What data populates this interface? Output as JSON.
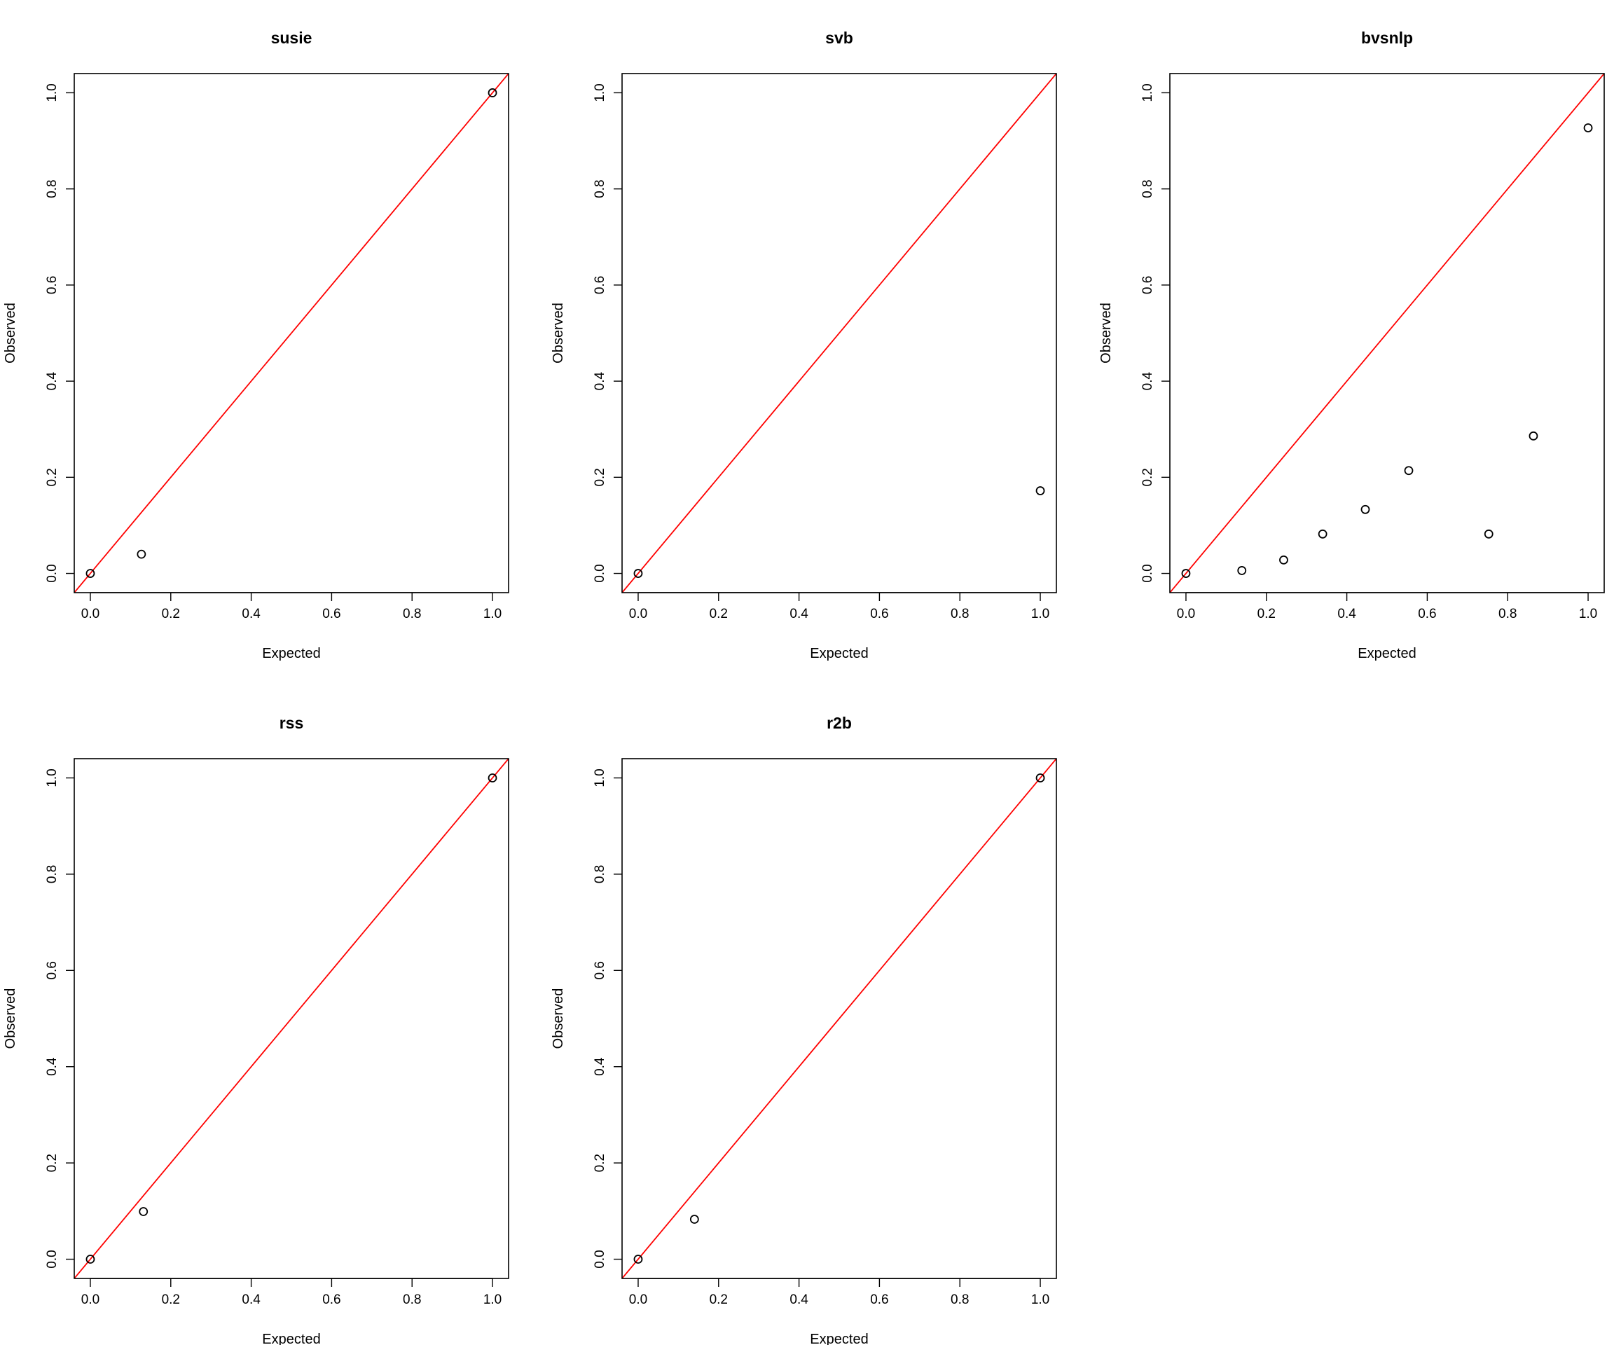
{
  "chart_data": [
    {
      "type": "scatter",
      "title": "susie",
      "xlabel": "Expected",
      "ylabel": "Observed",
      "xlim": [
        0,
        1
      ],
      "ylim": [
        0,
        1
      ],
      "xticks": [
        "0.0",
        "0.2",
        "0.4",
        "0.6",
        "0.8",
        "1.0"
      ],
      "yticks": [
        "0.0",
        "0.2",
        "0.4",
        "0.6",
        "0.8",
        "1.0"
      ],
      "reference_line": "y = x",
      "reference_color": "#ff0000",
      "grid": false,
      "points": [
        {
          "x": 0.0,
          "y": 0.0
        },
        {
          "x": 0.127,
          "y": 0.04
        },
        {
          "x": 1.0,
          "y": 1.0
        }
      ]
    },
    {
      "type": "scatter",
      "title": "svb",
      "xlabel": "Expected",
      "ylabel": "Observed",
      "xlim": [
        0,
        1
      ],
      "ylim": [
        0,
        1
      ],
      "xticks": [
        "0.0",
        "0.2",
        "0.4",
        "0.6",
        "0.8",
        "1.0"
      ],
      "yticks": [
        "0.0",
        "0.2",
        "0.4",
        "0.6",
        "0.8",
        "1.0"
      ],
      "reference_line": "y = x",
      "reference_color": "#ff0000",
      "grid": false,
      "points": [
        {
          "x": 0.0,
          "y": 0.0
        },
        {
          "x": 1.0,
          "y": 0.172
        }
      ]
    },
    {
      "type": "scatter",
      "title": "bvsnlp",
      "xlabel": "Expected",
      "ylabel": "Observed",
      "xlim": [
        0,
        1
      ],
      "ylim": [
        0,
        1
      ],
      "xticks": [
        "0.0",
        "0.2",
        "0.4",
        "0.6",
        "0.8",
        "1.0"
      ],
      "yticks": [
        "0.0",
        "0.2",
        "0.4",
        "0.6",
        "0.8",
        "1.0"
      ],
      "reference_line": "y = x",
      "reference_color": "#ff0000",
      "grid": false,
      "points": [
        {
          "x": 0.0,
          "y": 0.0
        },
        {
          "x": 0.139,
          "y": 0.006
        },
        {
          "x": 0.243,
          "y": 0.028
        },
        {
          "x": 0.34,
          "y": 0.082
        },
        {
          "x": 0.446,
          "y": 0.133
        },
        {
          "x": 0.554,
          "y": 0.214
        },
        {
          "x": 0.753,
          "y": 0.082
        },
        {
          "x": 0.864,
          "y": 0.286
        },
        {
          "x": 1.0,
          "y": 0.927
        }
      ]
    },
    {
      "type": "scatter",
      "title": "rss",
      "xlabel": "Expected",
      "ylabel": "Observed",
      "xlim": [
        0,
        1
      ],
      "ylim": [
        0,
        1
      ],
      "xticks": [
        "0.0",
        "0.2",
        "0.4",
        "0.6",
        "0.8",
        "1.0"
      ],
      "yticks": [
        "0.0",
        "0.2",
        "0.4",
        "0.6",
        "0.8",
        "1.0"
      ],
      "reference_line": "y = x",
      "reference_color": "#ff0000",
      "grid": false,
      "points": [
        {
          "x": 0.0,
          "y": 0.0
        },
        {
          "x": 0.132,
          "y": 0.099
        },
        {
          "x": 1.0,
          "y": 1.0
        }
      ]
    },
    {
      "type": "scatter",
      "title": "r2b",
      "xlabel": "Expected",
      "ylabel": "Observed",
      "xlim": [
        0,
        1
      ],
      "ylim": [
        0,
        1
      ],
      "xticks": [
        "0.0",
        "0.2",
        "0.4",
        "0.6",
        "0.8",
        "1.0"
      ],
      "yticks": [
        "0.0",
        "0.2",
        "0.4",
        "0.6",
        "0.8",
        "1.0"
      ],
      "reference_line": "y = x",
      "reference_color": "#ff0000",
      "grid": false,
      "points": [
        {
          "x": 0.0,
          "y": 0.0
        },
        {
          "x": 0.14,
          "y": 0.083
        },
        {
          "x": 1.0,
          "y": 1.0
        }
      ]
    }
  ]
}
